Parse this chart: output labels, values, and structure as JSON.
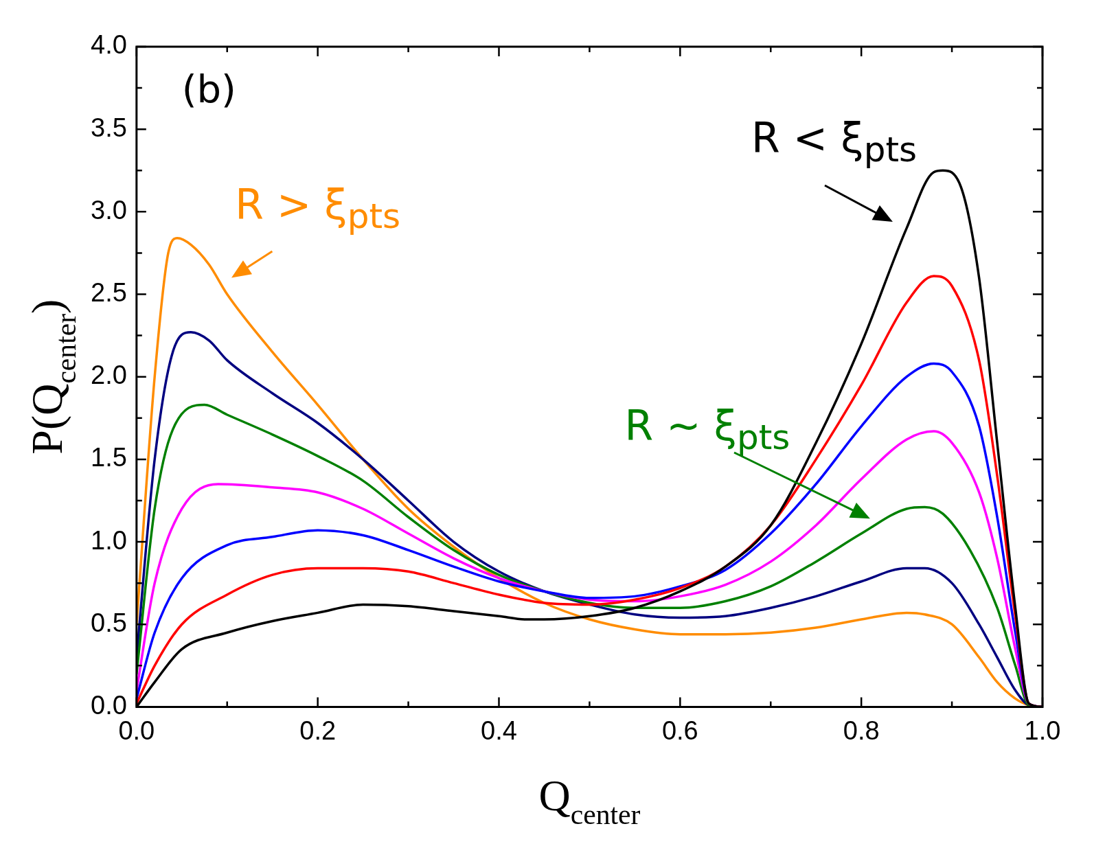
{
  "chart_data": {
    "type": "line",
    "xlabel": "Q$_{center}$",
    "ylabel": "P(Q$_{center}$)",
    "xlim": [
      0,
      1
    ],
    "ylim": [
      0,
      4
    ],
    "xticks": [
      {
        "value": 0,
        "label": "0.0"
      },
      {
        "value": 0.2,
        "label": "0.2"
      },
      {
        "value": 0.4,
        "label": "0.4"
      },
      {
        "value": 0.6,
        "label": "0.6"
      },
      {
        "value": 0.8,
        "label": "0.8"
      },
      {
        "value": 1,
        "label": "1.0"
      }
    ],
    "yticks": [
      {
        "value": 0,
        "label": "0.0"
      },
      {
        "value": 0.5,
        "label": "0.5"
      },
      {
        "value": 1,
        "label": "1.0"
      },
      {
        "value": 1.5,
        "label": "1.5"
      },
      {
        "value": 2,
        "label": "2.0"
      },
      {
        "value": 2.5,
        "label": "2.5"
      },
      {
        "value": 3,
        "label": "3.0"
      },
      {
        "value": 3.5,
        "label": "3.5"
      },
      {
        "value": 4,
        "label": "4.0"
      }
    ],
    "grid": false,
    "legend": false,
    "marker": "none",
    "line_style": "solid",
    "annotations": [
      "(b)",
      "R < ξ$_{pts}$",
      "R > ξ$_{pts}$",
      "R ~ ξ$_{pts}$"
    ],
    "series": [
      {
        "color": "#000000",
        "x": [
          0,
          0.02,
          0.05,
          0.1,
          0.15,
          0.2,
          0.25,
          0.3,
          0.35,
          0.4,
          0.43,
          0.45,
          0.5,
          0.55,
          0.6,
          0.65,
          0.7,
          0.75,
          0.8,
          0.85,
          0.88,
          0.89,
          0.91,
          0.93,
          0.95,
          0.97,
          0.985,
          1
        ],
        "values": [
          0,
          0.15,
          0.35,
          0.45,
          0.52,
          0.57,
          0.62,
          0.61,
          0.58,
          0.55,
          0.53,
          0.53,
          0.55,
          0.6,
          0.7,
          0.85,
          1.1,
          1.6,
          2.2,
          2.9,
          3.24,
          3.25,
          3.15,
          2.6,
          1.6,
          0.6,
          0.02,
          0
        ]
      },
      {
        "color": "#ff0000",
        "x": [
          0,
          0.02,
          0.05,
          0.1,
          0.15,
          0.2,
          0.25,
          0.3,
          0.35,
          0.4,
          0.45,
          0.5,
          0.55,
          0.6,
          0.65,
          0.7,
          0.75,
          0.8,
          0.85,
          0.88,
          0.9,
          0.93,
          0.95,
          0.97,
          0.985,
          1
        ],
        "values": [
          0.02,
          0.25,
          0.5,
          0.68,
          0.8,
          0.84,
          0.84,
          0.82,
          0.75,
          0.68,
          0.63,
          0.62,
          0.65,
          0.72,
          0.85,
          1.1,
          1.5,
          1.95,
          2.45,
          2.61,
          2.55,
          2.1,
          1.4,
          0.55,
          0.02,
          0
        ]
      },
      {
        "color": "#0000ff",
        "x": [
          0,
          0.02,
          0.05,
          0.1,
          0.15,
          0.2,
          0.25,
          0.3,
          0.35,
          0.4,
          0.45,
          0.5,
          0.55,
          0.6,
          0.65,
          0.7,
          0.75,
          0.8,
          0.85,
          0.88,
          0.9,
          0.93,
          0.95,
          0.97,
          0.985,
          1
        ],
        "values": [
          0.05,
          0.45,
          0.78,
          0.98,
          1.03,
          1.07,
          1.04,
          0.95,
          0.85,
          0.76,
          0.7,
          0.66,
          0.67,
          0.73,
          0.83,
          1.05,
          1.35,
          1.7,
          2,
          2.08,
          2.03,
          1.7,
          1.15,
          0.45,
          0.02,
          0
        ]
      },
      {
        "color": "#ff00ff",
        "x": [
          0,
          0.02,
          0.05,
          0.09,
          0.15,
          0.2,
          0.25,
          0.3,
          0.35,
          0.4,
          0.45,
          0.5,
          0.55,
          0.6,
          0.65,
          0.7,
          0.75,
          0.8,
          0.85,
          0.88,
          0.9,
          0.93,
          0.95,
          0.97,
          0.985,
          1
        ],
        "values": [
          0.1,
          0.75,
          1.2,
          1.35,
          1.33,
          1.3,
          1.2,
          1.05,
          0.9,
          0.78,
          0.7,
          0.65,
          0.64,
          0.67,
          0.74,
          0.88,
          1.1,
          1.38,
          1.62,
          1.67,
          1.6,
          1.3,
          0.9,
          0.35,
          0.02,
          0
        ]
      },
      {
        "color": "#008000",
        "x": [
          0,
          0.02,
          0.04,
          0.075,
          0.1,
          0.15,
          0.2,
          0.25,
          0.3,
          0.35,
          0.4,
          0.45,
          0.5,
          0.55,
          0.6,
          0.65,
          0.7,
          0.75,
          0.8,
          0.85,
          0.87,
          0.89,
          0.92,
          0.95,
          0.97,
          0.985,
          1
        ],
        "values": [
          0.2,
          1.2,
          1.68,
          1.83,
          1.77,
          1.65,
          1.52,
          1.37,
          1.15,
          0.95,
          0.8,
          0.7,
          0.63,
          0.6,
          0.6,
          0.64,
          0.73,
          0.88,
          1.05,
          1.2,
          1.21,
          1.17,
          0.95,
          0.6,
          0.25,
          0.01,
          0
        ]
      },
      {
        "color": "#000080",
        "x": [
          0,
          0.02,
          0.04,
          0.06,
          0.08,
          0.1,
          0.15,
          0.2,
          0.25,
          0.3,
          0.35,
          0.4,
          0.45,
          0.5,
          0.55,
          0.6,
          0.65,
          0.7,
          0.75,
          0.8,
          0.85,
          0.87,
          0.9,
          0.93,
          0.95,
          0.97,
          0.985,
          1
        ],
        "values": [
          0.3,
          1.5,
          2.15,
          2.27,
          2.22,
          2.1,
          1.9,
          1.72,
          1.5,
          1.25,
          1,
          0.82,
          0.7,
          0.62,
          0.56,
          0.54,
          0.55,
          0.6,
          0.67,
          0.76,
          0.84,
          0.84,
          0.75,
          0.5,
          0.3,
          0.1,
          0.01,
          0
        ]
      },
      {
        "color": "#ff8c00",
        "x": [
          0,
          0.02,
          0.035,
          0.045,
          0.06,
          0.08,
          0.1,
          0.15,
          0.2,
          0.25,
          0.3,
          0.35,
          0.4,
          0.45,
          0.5,
          0.55,
          0.6,
          0.65,
          0.7,
          0.75,
          0.8,
          0.85,
          0.87,
          0.9,
          0.93,
          0.95,
          0.97,
          0.985,
          1
        ],
        "values": [
          0.5,
          2,
          2.75,
          2.84,
          2.8,
          2.68,
          2.5,
          2.15,
          1.83,
          1.5,
          1.2,
          0.97,
          0.78,
          0.63,
          0.53,
          0.47,
          0.44,
          0.44,
          0.45,
          0.48,
          0.53,
          0.57,
          0.56,
          0.5,
          0.3,
          0.15,
          0.05,
          0.01,
          0
        ]
      }
    ]
  }
}
